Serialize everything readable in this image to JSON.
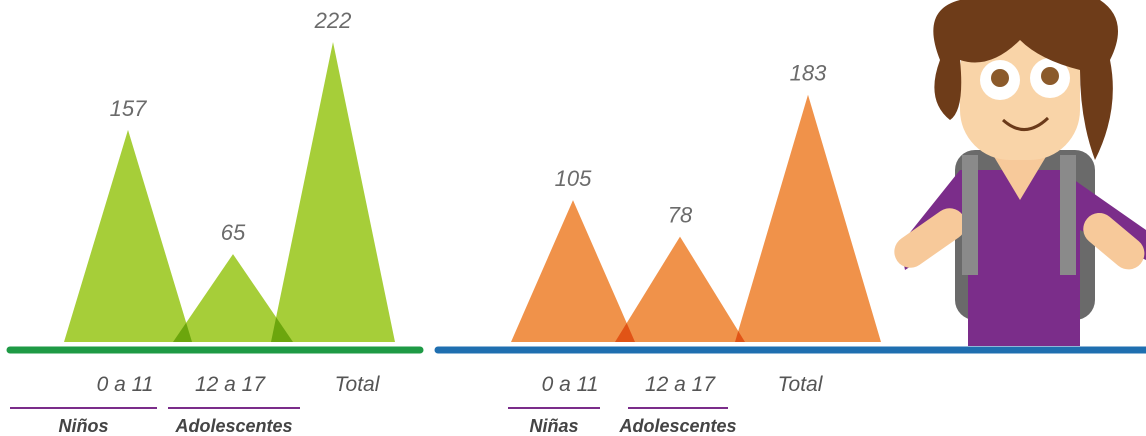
{
  "chart_data": [
    {
      "type": "triangle",
      "categories": [
        "0 a 11",
        "12 a 17",
        "Total"
      ],
      "values": [
        157,
        65,
        222
      ],
      "color": "#a6ce39",
      "baseline_color": "#1e9a45",
      "groups": [
        "Niños",
        "Adolescentes"
      ]
    },
    {
      "type": "triangle",
      "categories": [
        "0 a 11",
        "12 a 17",
        "Total"
      ],
      "values": [
        105,
        78,
        183
      ],
      "color": "#f0924a",
      "baseline_color": "#1f6fb0",
      "groups": [
        "Niñas",
        "Adolescentes"
      ]
    }
  ]
}
